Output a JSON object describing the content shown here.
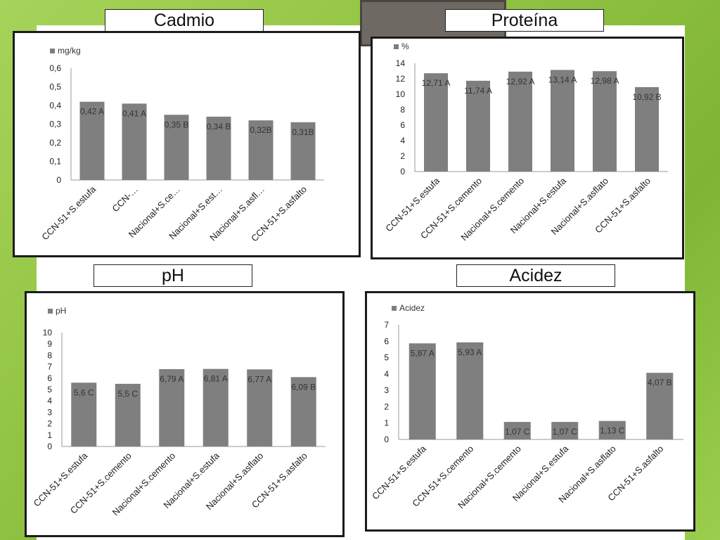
{
  "panels": [
    {
      "title": "Cadmio",
      "chart_data": {
        "type": "bar",
        "series_name": "mg/kg",
        "categories": [
          "CCN-51+S.estufa",
          "CCN-…",
          "Nacional+S.ce…",
          "Nacional+S.est…",
          "Nacional+S.asfl…",
          "CCN-51+S.asfalto"
        ],
        "values": [
          0.42,
          0.41,
          0.35,
          0.34,
          0.32,
          0.31
        ],
        "data_labels": [
          "0,42 A",
          "0,41 A",
          "0,35 B",
          "0,34 B",
          "0,32B",
          "0,31B"
        ],
        "yticks": [
          "0",
          "0,1",
          "0,2",
          "0,3",
          "0,4",
          "0,5",
          "0,6"
        ],
        "ylim": [
          0,
          0.6
        ],
        "legend": "top-left",
        "bar_color": "#7f7f7f"
      }
    },
    {
      "title": "Proteína",
      "chart_data": {
        "type": "bar",
        "series_name": "%",
        "categories": [
          "CCN-51+S.estufa",
          "CCN-51+S.cemento",
          "Nacional+S.cemento",
          "Nacional+S.estufa",
          "Nacional+S.asflato",
          "CCN-51+S.asfalto"
        ],
        "values": [
          12.71,
          11.74,
          12.92,
          13.14,
          12.98,
          10.92
        ],
        "data_labels": [
          "12,71 A",
          "11,74 A",
          "12,92 A",
          "13,14 A",
          "12,98 A",
          "10,92 B"
        ],
        "yticks": [
          "0",
          "2",
          "4",
          "6",
          "8",
          "10",
          "12",
          "14"
        ],
        "ylim": [
          0,
          14
        ],
        "legend": "top-left",
        "bar_color": "#7f7f7f"
      }
    },
    {
      "title": "pH",
      "chart_data": {
        "type": "bar",
        "series_name": "pH",
        "categories": [
          "CCN-51+S.estufa",
          "CCN-51+S.cemento",
          "Nacional+S.cemento",
          "Nacional+S.estufa",
          "Nacional+S.asflato",
          "CCN-51+S.asfalto"
        ],
        "values": [
          5.6,
          5.5,
          6.79,
          6.81,
          6.77,
          6.09
        ],
        "data_labels": [
          "5,6 C",
          "5,5 C",
          "6,79 A",
          "6,81 A",
          "6,77 A",
          "6,09 B"
        ],
        "yticks": [
          "0",
          "1",
          "2",
          "3",
          "4",
          "5",
          "6",
          "7",
          "8",
          "9",
          "10"
        ],
        "ylim": [
          0,
          10
        ],
        "legend": "top-left",
        "bar_color": "#7f7f7f"
      }
    },
    {
      "title": "Acidez",
      "chart_data": {
        "type": "bar",
        "series_name": "Acidez",
        "categories": [
          "CCN-51+S.estufa",
          "CCN-51+S.cemento",
          "Nacional+S.cemento",
          "Nacional+S.estufa",
          "Nacional+S.asflato",
          "CCN-51+S.asfalto"
        ],
        "values": [
          5.87,
          5.93,
          1.07,
          1.07,
          1.13,
          4.07
        ],
        "data_labels": [
          "5,87 A",
          "5,93 A",
          "1,07 C",
          "1,07 C",
          "1,13 C",
          "4,07 B"
        ],
        "yticks": [
          "0",
          "1",
          "2",
          "3",
          "4",
          "5",
          "6",
          "7"
        ],
        "ylim": [
          0,
          7
        ],
        "legend": "top-left",
        "bar_color": "#7f7f7f"
      }
    }
  ]
}
